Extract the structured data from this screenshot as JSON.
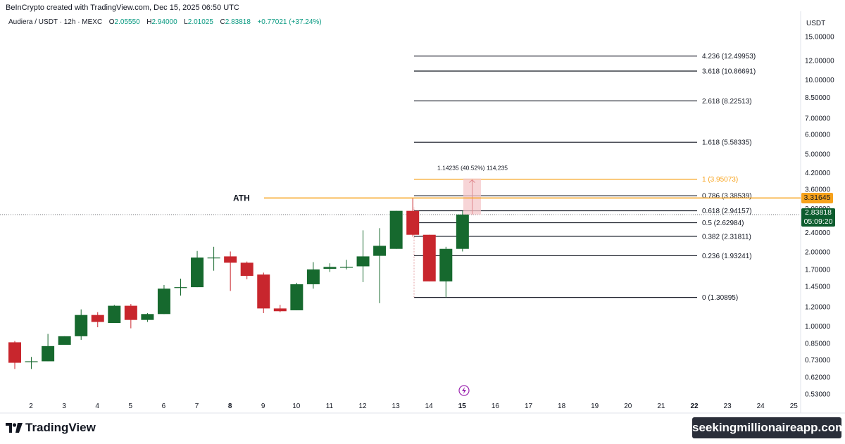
{
  "header": {
    "credit": "BeInCrypto created with TradingView.com, Dec 15, 2025 06:50 UTC"
  },
  "symbol": {
    "name": "Audiera / USDT · 12h · MEXC",
    "o_label": "O",
    "o": "2.05550",
    "h_label": "H",
    "h": "2.94000",
    "l_label": "L",
    "l": "2.01025",
    "c_label": "C",
    "c": "2.83818",
    "change": "+0.77021 (+37.24%)"
  },
  "axis": {
    "currency": "USDT"
  },
  "price_tags": {
    "ath": "3.31645",
    "last": "2.83818",
    "countdown": "05:09:20"
  },
  "annotation": {
    "ath_label": "ATH",
    "measure_label": "1.14235 (40.52%) 114,235"
  },
  "footer": {
    "brand": "TradingView",
    "watermark": "seekingmillionaireapp.com"
  },
  "colors": {
    "up": "#16692e",
    "down": "#c8262d",
    "ath_line": "#f7a21b",
    "fib_line": "#131722",
    "fib_one": "#f7a21b",
    "measure_fill": "#f4c7c9"
  },
  "chart_data": {
    "type": "candlestick",
    "title": "Audiera / USDT · 12h · MEXC",
    "y_scale": "log",
    "ylim": [
      0.5,
      17
    ],
    "y_ticks": [
      "15.00000",
      "12.00000",
      "10.00000",
      "8.50000",
      "7.00000",
      "6.00000",
      "5.00000",
      "4.20000",
      "3.60000",
      "3.00000",
      "2.40000",
      "2.00000",
      "1.70000",
      "1.45000",
      "1.20000",
      "1.00000",
      "0.85000",
      "0.73000",
      "0.62000",
      "0.53000"
    ],
    "x_ticks": [
      "2",
      "3",
      "4",
      "5",
      "6",
      "7",
      "8",
      "9",
      "10",
      "11",
      "12",
      "13",
      "14",
      "15",
      "16",
      "17",
      "18",
      "19",
      "20",
      "21",
      "22",
      "23",
      "24",
      "25"
    ],
    "x_ticks_bold": [
      "8",
      "15",
      "22"
    ],
    "candles": [
      {
        "o": 0.86,
        "h": 0.87,
        "l": 0.67,
        "c": 0.71
      },
      {
        "o": 0.72,
        "h": 0.75,
        "l": 0.67,
        "c": 0.72
      },
      {
        "o": 0.72,
        "h": 0.93,
        "l": 0.72,
        "c": 0.83
      },
      {
        "o": 0.84,
        "h": 0.91,
        "l": 0.84,
        "c": 0.91
      },
      {
        "o": 0.91,
        "h": 1.17,
        "l": 0.88,
        "c": 1.11
      },
      {
        "o": 1.11,
        "h": 1.14,
        "l": 0.99,
        "c": 1.04
      },
      {
        "o": 1.03,
        "h": 1.22,
        "l": 1.03,
        "c": 1.21
      },
      {
        "o": 1.21,
        "h": 1.23,
        "l": 0.98,
        "c": 1.06
      },
      {
        "o": 1.06,
        "h": 1.13,
        "l": 1.04,
        "c": 1.12
      },
      {
        "o": 1.12,
        "h": 1.47,
        "l": 1.12,
        "c": 1.42
      },
      {
        "o": 1.44,
        "h": 1.56,
        "l": 1.33,
        "c": 1.44
      },
      {
        "o": 1.44,
        "h": 2.02,
        "l": 1.44,
        "c": 1.9
      },
      {
        "o": 1.9,
        "h": 2.1,
        "l": 1.68,
        "c": 1.9
      },
      {
        "o": 1.92,
        "h": 2.01,
        "l": 1.39,
        "c": 1.81
      },
      {
        "o": 1.81,
        "h": 1.83,
        "l": 1.55,
        "c": 1.6
      },
      {
        "o": 1.62,
        "h": 1.65,
        "l": 1.13,
        "c": 1.18
      },
      {
        "o": 1.18,
        "h": 1.22,
        "l": 1.14,
        "c": 1.15
      },
      {
        "o": 1.16,
        "h": 1.5,
        "l": 1.16,
        "c": 1.48
      },
      {
        "o": 1.48,
        "h": 1.82,
        "l": 1.42,
        "c": 1.7
      },
      {
        "o": 1.71,
        "h": 1.8,
        "l": 1.66,
        "c": 1.74
      },
      {
        "o": 1.73,
        "h": 1.86,
        "l": 1.7,
        "c": 1.74
      },
      {
        "o": 1.75,
        "h": 2.45,
        "l": 1.51,
        "c": 1.92
      },
      {
        "o": 1.93,
        "h": 2.5,
        "l": 1.24,
        "c": 2.12
      },
      {
        "o": 2.06,
        "h": 2.94,
        "l": 2.06,
        "c": 2.94
      },
      {
        "o": 2.94,
        "h": 3.32,
        "l": 2.31,
        "c": 2.35
      },
      {
        "o": 2.35,
        "h": 2.35,
        "l": 1.52,
        "c": 1.52
      },
      {
        "o": 1.52,
        "h": 2.1,
        "l": 1.31,
        "c": 2.06
      },
      {
        "o": 2.06,
        "h": 2.94,
        "l": 2.01,
        "c": 2.84
      }
    ],
    "fib_levels": [
      {
        "ratio": "4.236",
        "price": 12.49953,
        "label": "4.236 (12.49953)"
      },
      {
        "ratio": "3.618",
        "price": 10.86691,
        "label": "3.618 (10.86691)"
      },
      {
        "ratio": "2.618",
        "price": 8.22513,
        "label": "2.618 (8.22513)"
      },
      {
        "ratio": "1.618",
        "price": 5.58335,
        "label": "1.618 (5.58335)"
      },
      {
        "ratio": "1",
        "price": 3.95073,
        "label": "1 (3.95073)"
      },
      {
        "ratio": "0.786",
        "price": 3.38539,
        "label": "0.786 (3.38539)"
      },
      {
        "ratio": "0.618",
        "price": 2.94157,
        "label": "0.618 (2.94157)"
      },
      {
        "ratio": "0.5",
        "price": 2.62984,
        "label": "0.5 (2.62984)"
      },
      {
        "ratio": "0.382",
        "price": 2.31811,
        "label": "0.382 (2.31811)"
      },
      {
        "ratio": "0.236",
        "price": 1.93241,
        "label": "0.236 (1.93241)"
      },
      {
        "ratio": "0",
        "price": 1.30895,
        "label": "0 (1.30895)"
      }
    ],
    "ath_price": 3.31645,
    "last_price": 2.83818,
    "measure": {
      "from": 2.84,
      "to": 3.98
    }
  }
}
